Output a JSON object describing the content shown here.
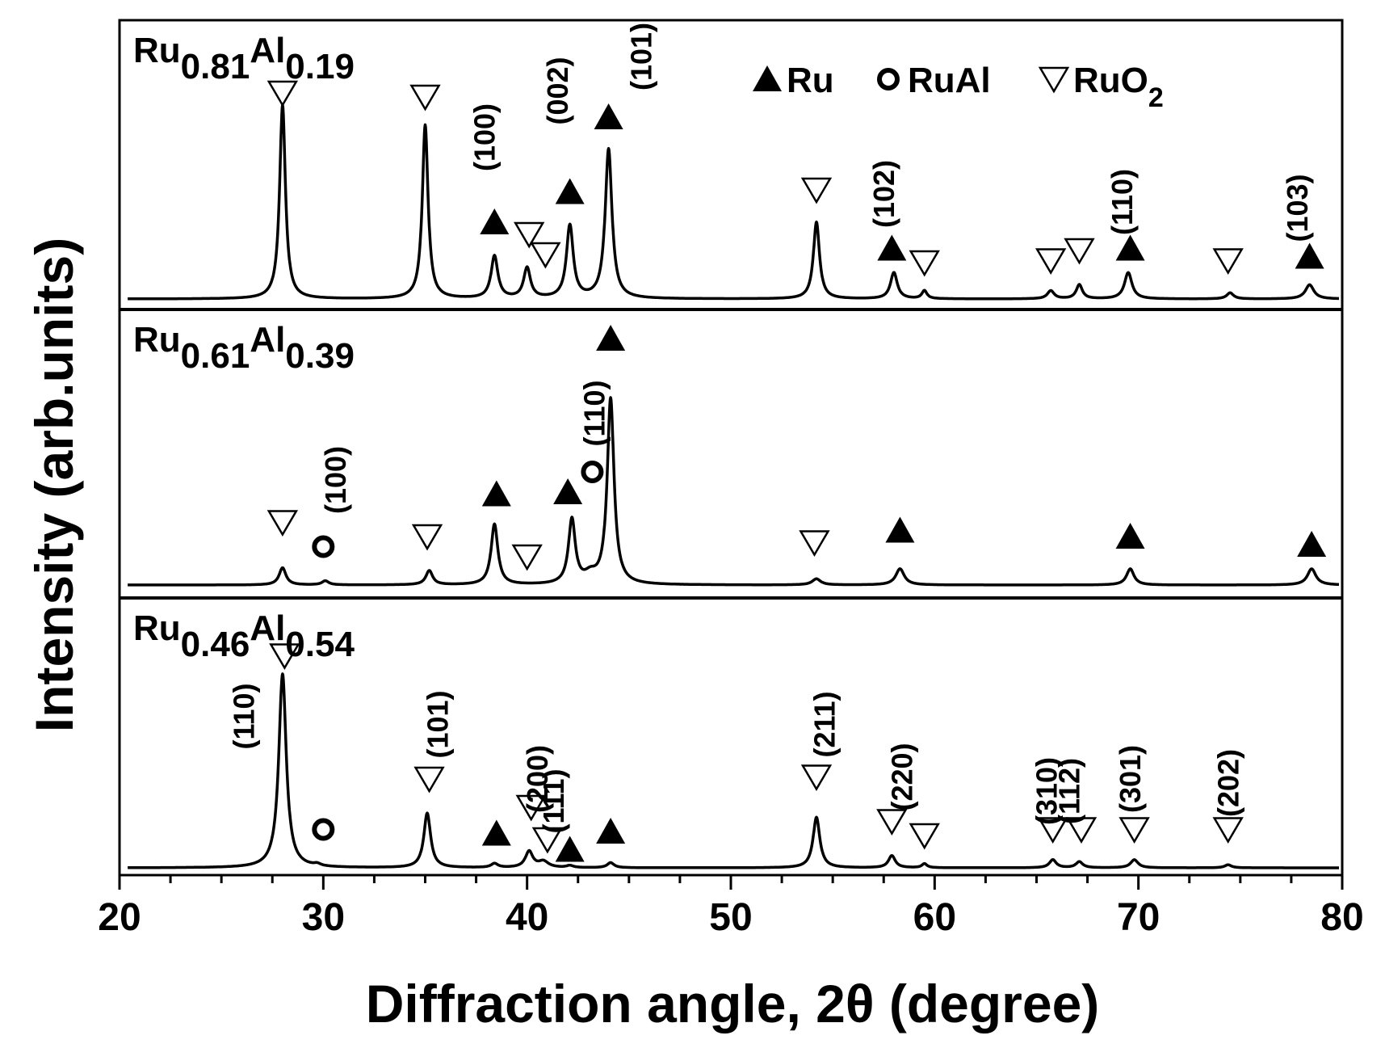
{
  "chart_data": {
    "type": "line",
    "xlabel": "Diffraction angle, 2θ (degree)",
    "ylabel": "Intensity (arb.units)",
    "xlim": [
      20,
      80
    ],
    "xticks": [
      20,
      30,
      40,
      50,
      60,
      70,
      80
    ],
    "grid": false,
    "legend": {
      "placement": "top-right",
      "entries": [
        {
          "symbol": "filled-triangle",
          "phase": "Ru",
          "text": "Ru"
        },
        {
          "symbol": "circle",
          "phase": "RuAl",
          "text": "RuAl"
        },
        {
          "symbol": "open-triangle-down",
          "phase": "RuO2",
          "text": "RuO",
          "sub": "2"
        }
      ]
    },
    "panels": [
      {
        "name": "Ru0.81Al0.19",
        "label": {
          "base": "Ru",
          "sub1": "0.81",
          "mid": "Al",
          "sub2": "0.19"
        },
        "peaks": [
          {
            "x": 28.0,
            "h": 0.96,
            "w": 0.17
          },
          {
            "x": 35.0,
            "h": 0.86,
            "w": 0.17
          },
          {
            "x": 38.4,
            "h": 0.21,
            "w": 0.2
          },
          {
            "x": 40.0,
            "h": 0.15,
            "w": 0.2
          },
          {
            "x": 42.1,
            "h": 0.36,
            "w": 0.2
          },
          {
            "x": 44.0,
            "h": 0.74,
            "w": 0.2
          },
          {
            "x": 54.2,
            "h": 0.38,
            "w": 0.18
          },
          {
            "x": 58.0,
            "h": 0.13,
            "w": 0.2
          },
          {
            "x": 59.5,
            "h": 0.04,
            "w": 0.15
          },
          {
            "x": 65.7,
            "h": 0.04,
            "w": 0.2
          },
          {
            "x": 67.1,
            "h": 0.07,
            "w": 0.18
          },
          {
            "x": 69.5,
            "h": 0.13,
            "w": 0.22
          },
          {
            "x": 74.5,
            "h": 0.03,
            "w": 0.2
          },
          {
            "x": 78.4,
            "h": 0.07,
            "w": 0.25
          }
        ],
        "markers": [
          {
            "x": 28.0,
            "phase": "RuO2",
            "level": 1.02
          },
          {
            "x": 35.0,
            "phase": "RuO2",
            "level": 1.0
          },
          {
            "x": 38.4,
            "phase": "Ru",
            "level": 0.38
          },
          {
            "x": 40.1,
            "phase": "RuO2",
            "level": 0.32
          },
          {
            "x": 40.9,
            "phase": "RuO2",
            "level": 0.22
          },
          {
            "x": 42.1,
            "phase": "Ru",
            "level": 0.53
          },
          {
            "x": 44.0,
            "phase": "Ru",
            "level": 0.9
          },
          {
            "x": 54.2,
            "phase": "RuO2",
            "level": 0.54
          },
          {
            "x": 57.9,
            "phase": "Ru",
            "level": 0.25
          },
          {
            "x": 59.5,
            "phase": "RuO2",
            "level": 0.18
          },
          {
            "x": 65.7,
            "phase": "RuO2",
            "level": 0.19
          },
          {
            "x": 67.1,
            "phase": "RuO2",
            "level": 0.24
          },
          {
            "x": 69.6,
            "phase": "Ru",
            "level": 0.25
          },
          {
            "x": 74.4,
            "phase": "RuO2",
            "level": 0.19
          },
          {
            "x": 78.4,
            "phase": "Ru",
            "level": 0.21
          }
        ],
        "hkl": [
          {
            "text": "(100)",
            "x": 38.4,
            "level": 0.8
          },
          {
            "text": "(002)",
            "x": 42.0,
            "level": 1.03
          },
          {
            "text": "(101)",
            "x": 46.1,
            "level": 1.2
          },
          {
            "text": "(102)",
            "x": 58.0,
            "level": 0.52
          },
          {
            "text": "(110)",
            "x": 69.7,
            "level": 0.48
          },
          {
            "text": "(103)",
            "x": 78.3,
            "level": 0.45
          }
        ]
      },
      {
        "name": "Ru0.61Al0.39",
        "label": {
          "base": "Ru",
          "sub1": "0.61",
          "mid": "Al",
          "sub2": "0.39"
        },
        "peaks": [
          {
            "x": 28.0,
            "h": 0.085,
            "w": 0.2
          },
          {
            "x": 30.1,
            "h": 0.02,
            "w": 0.2
          },
          {
            "x": 35.2,
            "h": 0.07,
            "w": 0.2
          },
          {
            "x": 38.4,
            "h": 0.3,
            "w": 0.2
          },
          {
            "x": 42.2,
            "h": 0.32,
            "w": 0.2
          },
          {
            "x": 43.1,
            "h": 0.04,
            "w": 0.35
          },
          {
            "x": 44.1,
            "h": 0.92,
            "w": 0.2
          },
          {
            "x": 54.2,
            "h": 0.03,
            "w": 0.25
          },
          {
            "x": 58.3,
            "h": 0.08,
            "w": 0.25
          },
          {
            "x": 69.6,
            "h": 0.08,
            "w": 0.22
          },
          {
            "x": 78.5,
            "h": 0.08,
            "w": 0.25
          }
        ],
        "markers": [
          {
            "x": 28.0,
            "phase": "RuO2",
            "level": 0.31
          },
          {
            "x": 30.0,
            "phase": "RuAl",
            "level": 0.19
          },
          {
            "x": 35.1,
            "phase": "RuO2",
            "level": 0.24
          },
          {
            "x": 38.5,
            "phase": "Ru",
            "level": 0.45
          },
          {
            "x": 40.0,
            "phase": "RuO2",
            "level": 0.14
          },
          {
            "x": 42.0,
            "phase": "Ru",
            "level": 0.46
          },
          {
            "x": 43.2,
            "phase": "RuAl",
            "level": 0.56
          },
          {
            "x": 44.1,
            "phase": "Ru",
            "level": 1.22
          },
          {
            "x": 54.1,
            "phase": "RuO2",
            "level": 0.21
          },
          {
            "x": 58.3,
            "phase": "Ru",
            "level": 0.27
          },
          {
            "x": 69.6,
            "phase": "Ru",
            "level": 0.24
          },
          {
            "x": 78.5,
            "phase": "Ru",
            "level": 0.2
          }
        ],
        "hkl": [
          {
            "text": "(100)",
            "x": 31.1,
            "level": 0.52
          },
          {
            "text": "(110)",
            "x": 43.8,
            "level": 0.85
          }
        ]
      },
      {
        "name": "Ru0.46Al0.54",
        "label": {
          "base": "Ru",
          "sub1": "0.46",
          "mid": "Al",
          "sub2": "0.54"
        },
        "peaks": [
          {
            "x": 28.0,
            "h": 0.96,
            "w": 0.22
          },
          {
            "x": 29.7,
            "h": 0.01,
            "w": 0.2
          },
          {
            "x": 35.1,
            "h": 0.27,
            "w": 0.2
          },
          {
            "x": 38.4,
            "h": 0.02,
            "w": 0.2
          },
          {
            "x": 40.1,
            "h": 0.08,
            "w": 0.22
          },
          {
            "x": 40.8,
            "h": 0.03,
            "w": 0.3
          },
          {
            "x": 42.1,
            "h": 0.01,
            "w": 0.2
          },
          {
            "x": 44.1,
            "h": 0.025,
            "w": 0.2
          },
          {
            "x": 54.2,
            "h": 0.25,
            "w": 0.2
          },
          {
            "x": 57.9,
            "h": 0.06,
            "w": 0.2
          },
          {
            "x": 59.5,
            "h": 0.02,
            "w": 0.15
          },
          {
            "x": 65.8,
            "h": 0.04,
            "w": 0.2
          },
          {
            "x": 67.1,
            "h": 0.03,
            "w": 0.2
          },
          {
            "x": 69.8,
            "h": 0.04,
            "w": 0.22
          },
          {
            "x": 74.4,
            "h": 0.015,
            "w": 0.2
          }
        ],
        "markers": [
          {
            "x": 28.1,
            "phase": "RuO2",
            "level": 1.05
          },
          {
            "x": 30.0,
            "phase": "RuAl",
            "level": 0.19
          },
          {
            "x": 35.2,
            "phase": "RuO2",
            "level": 0.44
          },
          {
            "x": 38.5,
            "phase": "Ru",
            "level": 0.17
          },
          {
            "x": 40.2,
            "phase": "RuO2",
            "level": 0.3
          },
          {
            "x": 41.0,
            "phase": "RuO2",
            "level": 0.14
          },
          {
            "x": 42.1,
            "phase": "Ru",
            "level": 0.09
          },
          {
            "x": 44.1,
            "phase": "Ru",
            "level": 0.18
          },
          {
            "x": 54.2,
            "phase": "RuO2",
            "level": 0.45
          },
          {
            "x": 57.9,
            "phase": "RuO2",
            "level": 0.23
          },
          {
            "x": 59.5,
            "phase": "RuO2",
            "level": 0.16
          },
          {
            "x": 65.8,
            "phase": "RuO2",
            "level": 0.19
          },
          {
            "x": 67.2,
            "phase": "RuO2",
            "level": 0.19
          },
          {
            "x": 69.8,
            "phase": "RuO2",
            "level": 0.19
          },
          {
            "x": 74.4,
            "phase": "RuO2",
            "level": 0.19
          }
        ],
        "hkl": [
          {
            "text": "(110)",
            "x": 26.6,
            "level": 0.75
          },
          {
            "text": "(101)",
            "x": 36.1,
            "level": 0.71
          },
          {
            "text": "(200)",
            "x": 41.0,
            "level": 0.44
          },
          {
            "text": "(111)",
            "x": 41.8,
            "level": 0.33
          },
          {
            "text": "(211)",
            "x": 55.1,
            "level": 0.71
          },
          {
            "text": "(220)",
            "x": 58.9,
            "level": 0.45
          },
          {
            "text": "(310)",
            "x": 66.0,
            "level": 0.38
          },
          {
            "text": "(112)",
            "x": 67.1,
            "level": 0.38
          },
          {
            "text": "(301)",
            "x": 70.1,
            "level": 0.44
          },
          {
            "text": "(202)",
            "x": 74.9,
            "level": 0.42
          }
        ]
      }
    ]
  }
}
